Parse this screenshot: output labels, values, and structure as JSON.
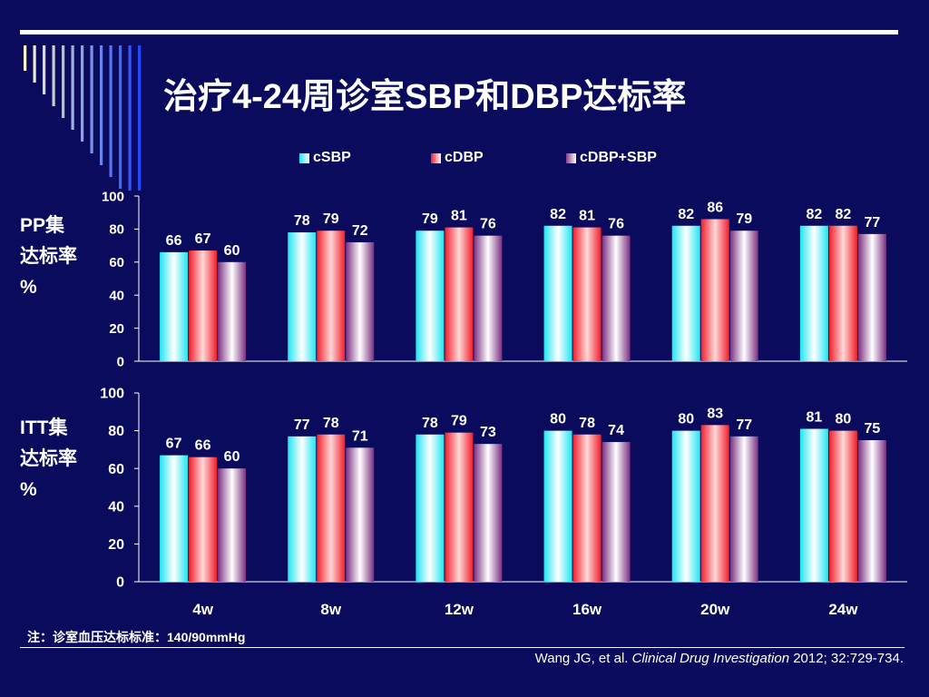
{
  "title": "治疗4-24周诊室SBP和DBP达标率",
  "colors": {
    "background": "#0B0B5E",
    "cSBP": "#1FE6F0",
    "cDBP": "#F01E2A",
    "cDBP+SBP": "#8A3C8E"
  },
  "panel_labels": [
    {
      "name": "PP集",
      "line2": "达标率",
      "line3": "%"
    },
    {
      "name": "ITT集",
      "line2": "达标率",
      "line3": "%"
    }
  ],
  "footnote": "注：诊室血压达标标准：140/90mmHg",
  "citation": {
    "authors": "Wang JG, et al. ",
    "journal": "Clinical Drug Investigation",
    "details": " 2012; 32:729-734."
  },
  "chart_data": [
    {
      "type": "bar",
      "categories": [
        "4w",
        "8w",
        "12w",
        "16w",
        "20w",
        "24w"
      ],
      "series": [
        {
          "name": "cSBP",
          "values": [
            66,
            78,
            79,
            82,
            82,
            82
          ]
        },
        {
          "name": "cDBP",
          "values": [
            67,
            79,
            81,
            81,
            86,
            82
          ]
        },
        {
          "name": "cDBP+SBP",
          "values": [
            60,
            72,
            76,
            76,
            79,
            77
          ]
        }
      ],
      "ylim": [
        0,
        100
      ],
      "yticks": [
        0,
        20,
        40,
        60,
        80,
        100
      ],
      "legend": "top-center",
      "grid": false
    },
    {
      "type": "bar",
      "categories": [
        "4w",
        "8w",
        "12w",
        "16w",
        "20w",
        "24w"
      ],
      "series": [
        {
          "name": "cSBP",
          "values": [
            67,
            77,
            78,
            80,
            80,
            81
          ]
        },
        {
          "name": "cDBP",
          "values": [
            66,
            78,
            79,
            78,
            83,
            80
          ]
        },
        {
          "name": "cDBP+SBP",
          "values": [
            60,
            71,
            73,
            74,
            77,
            75
          ]
        }
      ],
      "ylim": [
        0,
        100
      ],
      "yticks": [
        0,
        20,
        40,
        60,
        80,
        100
      ],
      "legend": "top-center",
      "grid": false
    }
  ]
}
